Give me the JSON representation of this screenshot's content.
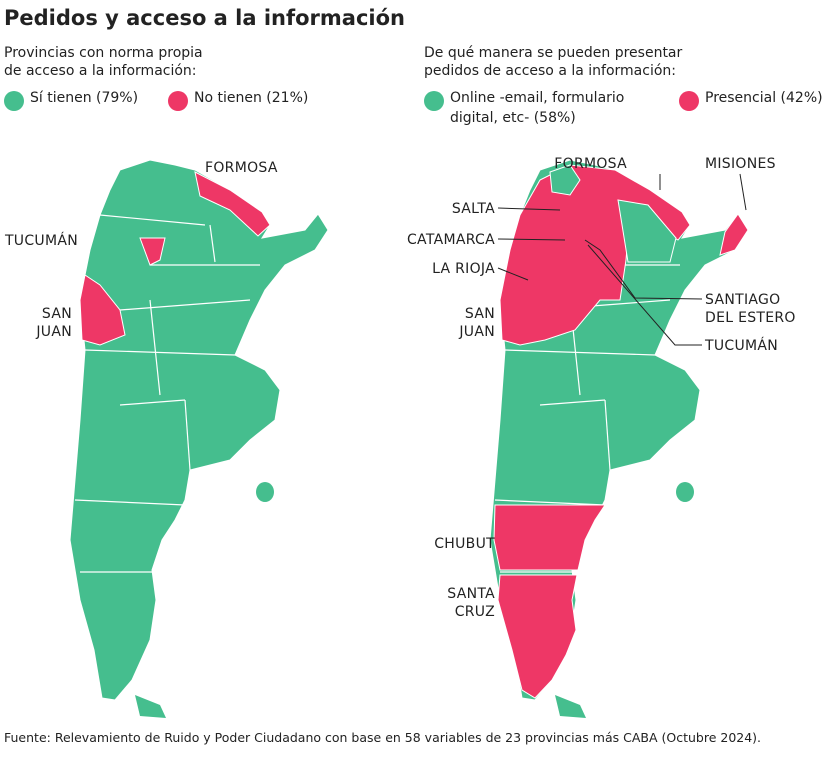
{
  "title": "Pedidos y acceso a la información",
  "maps": [
    {
      "subtitle": [
        "Provincias con norma propia",
        "de acceso a la información:"
      ],
      "legend": [
        {
          "label": [
            "Sí tienen (79%)"
          ],
          "color": "#45be8e"
        },
        {
          "label": [
            "No tienen (21%)"
          ],
          "color": "#ee3766"
        }
      ],
      "labels": [
        [
          "FORMOSA"
        ],
        [
          "TUCUMÁN"
        ],
        [
          "SAN",
          "JUAN"
        ]
      ]
    },
    {
      "subtitle": [
        "De qué manera se pueden presentar",
        "pedidos de acceso a la información:"
      ],
      "legend": [
        {
          "label": [
            "Online -email, formulario",
            "digital, etc- (58%)"
          ],
          "color": "#45be8e"
        },
        {
          "label": [
            "Presencial (42%)"
          ],
          "color": "#ee3766"
        }
      ],
      "labels": [
        [
          "FORMOSA"
        ],
        [
          "MISIONES"
        ],
        [
          "SALTA"
        ],
        [
          "CATAMARCA"
        ],
        [
          "LA RIOJA"
        ],
        [
          "SAN",
          "JUAN"
        ],
        [
          "SANTIAGO",
          "DEL ESTERO"
        ],
        [
          "TUCUMÁN"
        ],
        [
          "CHUBUT"
        ],
        [
          "SANTA",
          "CRUZ"
        ]
      ]
    }
  ],
  "source": "Fuente: Relevamiento de Ruido y Poder Ciudadano con base en 58 variables de 23 provincias más CABA (Octubre 2024)."
}
